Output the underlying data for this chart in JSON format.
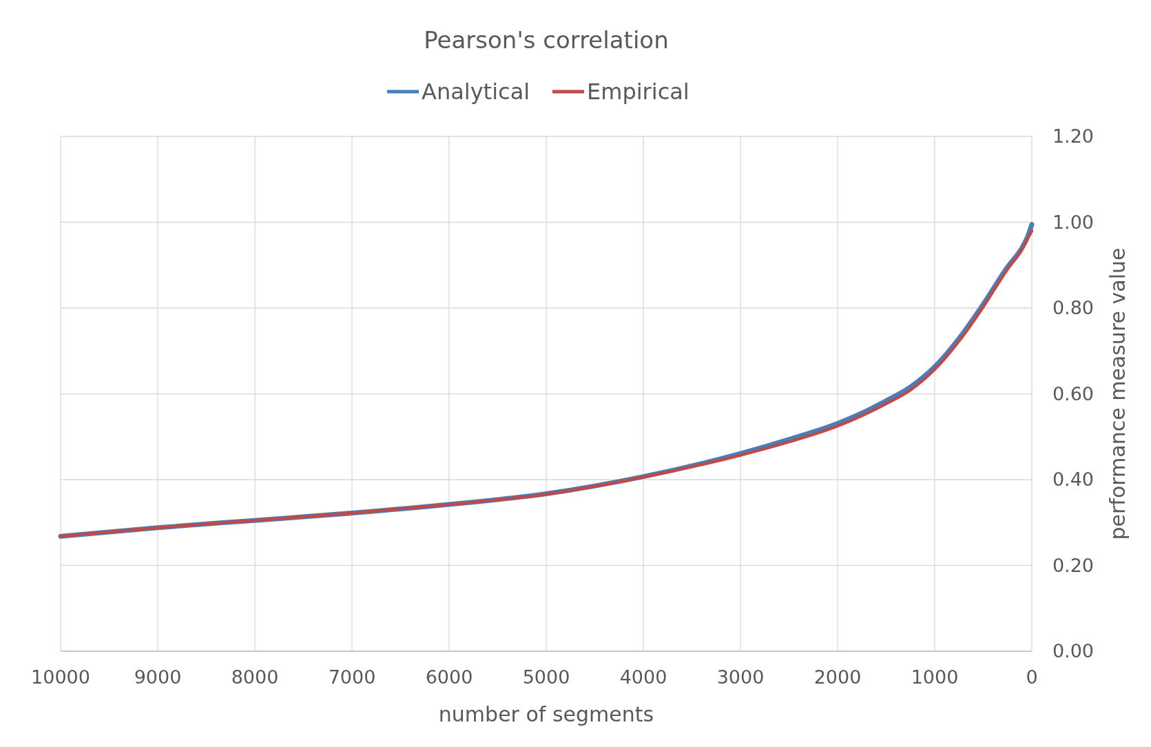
{
  "chart_data": {
    "type": "line",
    "title": "Pearson's correlation",
    "xlabel": "number of segments",
    "ylabel": "performance measure value",
    "xlim": [
      10000,
      0
    ],
    "xticks": [
      10000,
      9000,
      8000,
      7000,
      6000,
      5000,
      4000,
      3000,
      2000,
      1000,
      0
    ],
    "ylim": [
      0,
      1.2
    ],
    "yticks": [
      {
        "value": 0,
        "label": "0.00"
      },
      {
        "value": 0.2,
        "label": "0.20"
      },
      {
        "value": 0.4,
        "label": "0.40"
      },
      {
        "value": 0.6,
        "label": "0.60"
      },
      {
        "value": 0.8,
        "label": "0.80"
      },
      {
        "value": 1,
        "label": "1.00"
      },
      {
        "value": 1.2,
        "label": "1.20"
      }
    ],
    "grid": true,
    "legend": "top",
    "marker": "none",
    "line_style": "solid",
    "x": [
      10000,
      9000,
      8000,
      7000,
      6000,
      5000,
      4000,
      3000,
      2500,
      2000,
      1750,
      1500,
      1250,
      1000,
      750,
      500,
      250,
      100,
      50,
      0
    ],
    "series": [
      {
        "name": "Analytical",
        "color": "#4a7ebb",
        "values": [
          0.268,
          0.288,
          0.305,
          0.322,
          0.342,
          0.367,
          0.407,
          0.461,
          0.494,
          0.531,
          0.555,
          0.584,
          0.616,
          0.663,
          0.729,
          0.809,
          0.896,
          0.941,
          0.963,
          0.995
        ]
      },
      {
        "name": "Empirical",
        "color": "#be4b48",
        "values": [
          0.268,
          0.288,
          0.305,
          0.322,
          0.342,
          0.366,
          0.406,
          0.457,
          0.488,
          0.525,
          0.549,
          0.577,
          0.609,
          0.657,
          0.723,
          0.803,
          0.891,
          0.937,
          0.959,
          0.98
        ]
      }
    ]
  }
}
